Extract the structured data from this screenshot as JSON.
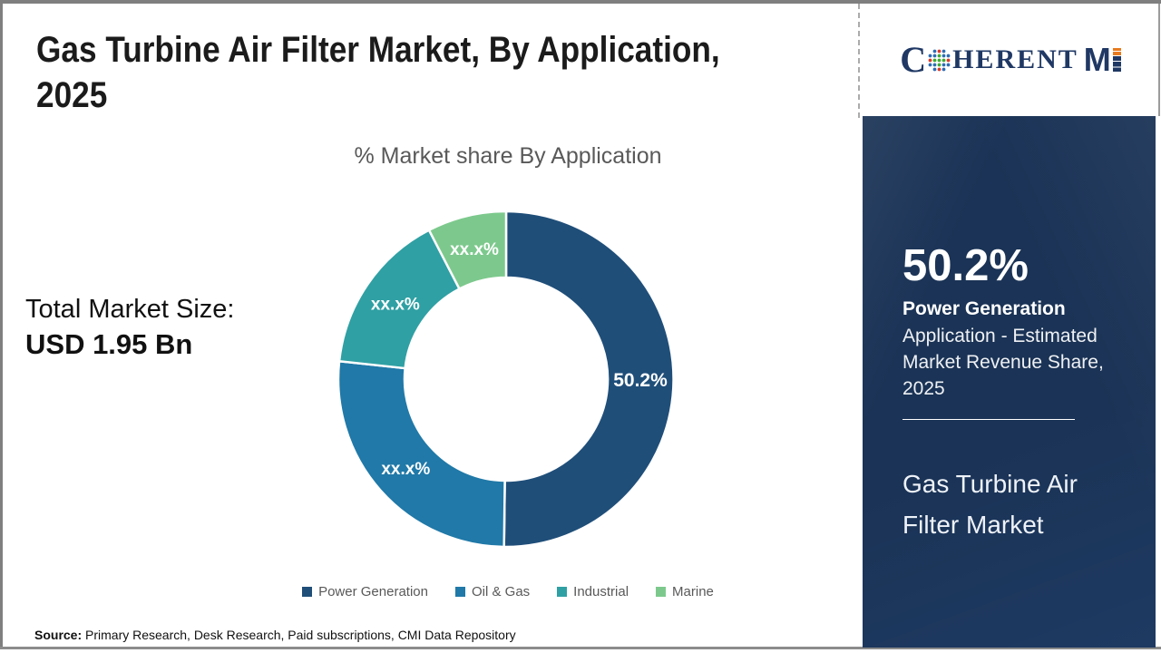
{
  "header": {
    "title_line1": "Gas Turbine Air Filter Market, By Application,",
    "title_line2": "2025"
  },
  "logo": {
    "prefix": "C",
    "middle": "HERENT",
    "suffix": "M"
  },
  "left_stat": {
    "label": "Total Market Size:",
    "value": "USD 1.95 Bn"
  },
  "chart_data": {
    "type": "pie",
    "donut": true,
    "title": "% Market share By Application",
    "categories": [
      "Power Generation",
      "Oil & Gas",
      "Industrial",
      "Marine"
    ],
    "segment_labels": [
      "50.2%",
      "xx.x%",
      "xx.x%",
      "xx.x%"
    ],
    "values_visual_pct": [
      50.2,
      26.5,
      15.7,
      7.6
    ],
    "colors": [
      "#1F4E79",
      "#2079A8",
      "#2FA0A4",
      "#7DC98D"
    ],
    "legend_position": "bottom",
    "label_color": "#ffffff"
  },
  "side_panel": {
    "stat_value": "50.2%",
    "stat_name": "Power Generation",
    "stat_desc": "Application - Estimated Market Revenue Share, 2025",
    "market_name": "Gas Turbine Air Filter Market",
    "background": "#1e3a62"
  },
  "source": {
    "label": "Source:",
    "text": "Primary Research, Desk Research, Paid subscriptions, CMI Data Repository"
  }
}
